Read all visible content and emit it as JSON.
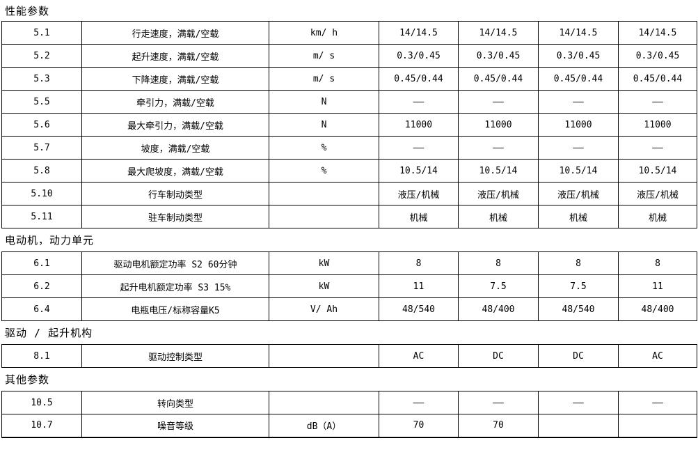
{
  "page": {
    "background_color": "#ffffff",
    "border_color": "#000000",
    "text_color": "#000000"
  },
  "sections": [
    {
      "title": "性能参数",
      "rows": [
        {
          "index": "5.1",
          "label": "行走速度，满载/空载",
          "unit": "km/ h",
          "values": [
            "14/14.5",
            "14/14.5",
            "14/14.5",
            "14/14.5"
          ]
        },
        {
          "index": "5.2",
          "label": "起升速度，满载/空载",
          "unit": "m/ s",
          "values": [
            "0.3/0.45",
            "0.3/0.45",
            "0.3/0.45",
            "0.3/0.45"
          ]
        },
        {
          "index": "5.3",
          "label": "下降速度，满载/空载",
          "unit": "m/ s",
          "values": [
            "0.45/0.44",
            "0.45/0.44",
            "0.45/0.44",
            "0.45/0.44"
          ]
        },
        {
          "index": "5.5",
          "label": "牵引力，满载/空载",
          "unit": "N",
          "values": [
            "——",
            "——",
            "——",
            "——"
          ]
        },
        {
          "index": "5.6",
          "label": "最大牵引力，满载/空载",
          "unit": "N",
          "values": [
            "11000",
            "11000",
            "11000",
            "11000"
          ]
        },
        {
          "index": "5.7",
          "label": "坡度，满载/空载",
          "unit": "%",
          "values": [
            "——",
            "——",
            "——",
            "——"
          ]
        },
        {
          "index": "5.8",
          "label": "最大爬坡度，满载/空载",
          "unit": "%",
          "values": [
            "10.5/14",
            "10.5/14",
            "10.5/14",
            "10.5/14"
          ]
        },
        {
          "index": "5.10",
          "label": "行车制动类型",
          "unit": "",
          "values": [
            "液压/机械",
            "液压/机械",
            "液压/机械",
            "液压/机械"
          ]
        },
        {
          "index": "5.11",
          "label": "驻车制动类型",
          "unit": "",
          "values": [
            "机械",
            "机械",
            "机械",
            "机械"
          ]
        }
      ]
    },
    {
      "title": "电动机，动力单元",
      "rows": [
        {
          "index": "6.1",
          "label": "驱动电机额定功率 S2 60分钟",
          "unit": "kW",
          "values": [
            "8",
            "8",
            "8",
            "8"
          ]
        },
        {
          "index": "6.2",
          "label": "起升电机额定功率 S3 15%",
          "unit": "kW",
          "values": [
            "11",
            "7.5",
            "7.5",
            "11"
          ]
        },
        {
          "index": "6.4",
          "label": "电瓶电压/标称容量K5",
          "unit": "V/ Ah",
          "values": [
            "48/540",
            "48/400",
            "48/540",
            "48/400"
          ]
        }
      ]
    },
    {
      "title": "驱动 / 起升机构",
      "rows": [
        {
          "index": "8.1",
          "label": "驱动控制类型",
          "unit": "",
          "values": [
            "AC",
            "DC",
            "DC",
            "AC"
          ]
        }
      ]
    },
    {
      "title": "其他参数",
      "rows": [
        {
          "index": "10.5",
          "label": "转向类型",
          "unit": "",
          "values": [
            "——",
            "——",
            "——",
            "——"
          ]
        },
        {
          "index": "10.7",
          "label": "噪音等级",
          "unit": "dB（A）",
          "values": [
            "70",
            "70",
            "",
            ""
          ]
        }
      ]
    }
  ]
}
